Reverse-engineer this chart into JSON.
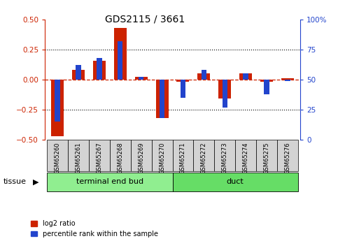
{
  "title": "GDS2115 / 3661",
  "samples": [
    "GSM65260",
    "GSM65261",
    "GSM65267",
    "GSM65268",
    "GSM65269",
    "GSM65270",
    "GSM65271",
    "GSM65272",
    "GSM65273",
    "GSM65274",
    "GSM65275",
    "GSM65276"
  ],
  "log2_ratio": [
    -0.47,
    0.08,
    0.155,
    0.43,
    0.02,
    -0.32,
    -0.018,
    0.05,
    -0.155,
    0.05,
    -0.018,
    0.01
  ],
  "percentile": [
    15,
    62,
    68,
    82,
    52,
    18,
    35,
    58,
    27,
    55,
    38,
    49
  ],
  "groups": [
    {
      "label": "terminal end bud",
      "start": 0,
      "end": 6,
      "color": "#90ee90"
    },
    {
      "label": "duct",
      "start": 6,
      "end": 12,
      "color": "#66dd66"
    }
  ],
  "ylim_left": [
    -0.5,
    0.5
  ],
  "ylim_right": [
    0,
    100
  ],
  "yticks_left": [
    -0.5,
    -0.25,
    0.0,
    0.25,
    0.5
  ],
  "yticks_right": [
    0,
    25,
    50,
    75,
    100
  ],
  "red_bar_width": 0.6,
  "blue_bar_width": 0.25,
  "red_color": "#cc2200",
  "blue_color": "#2244cc",
  "tissue_label": "tissue",
  "legend_log2": "log2 ratio",
  "legend_pct": "percentile rank within the sample"
}
